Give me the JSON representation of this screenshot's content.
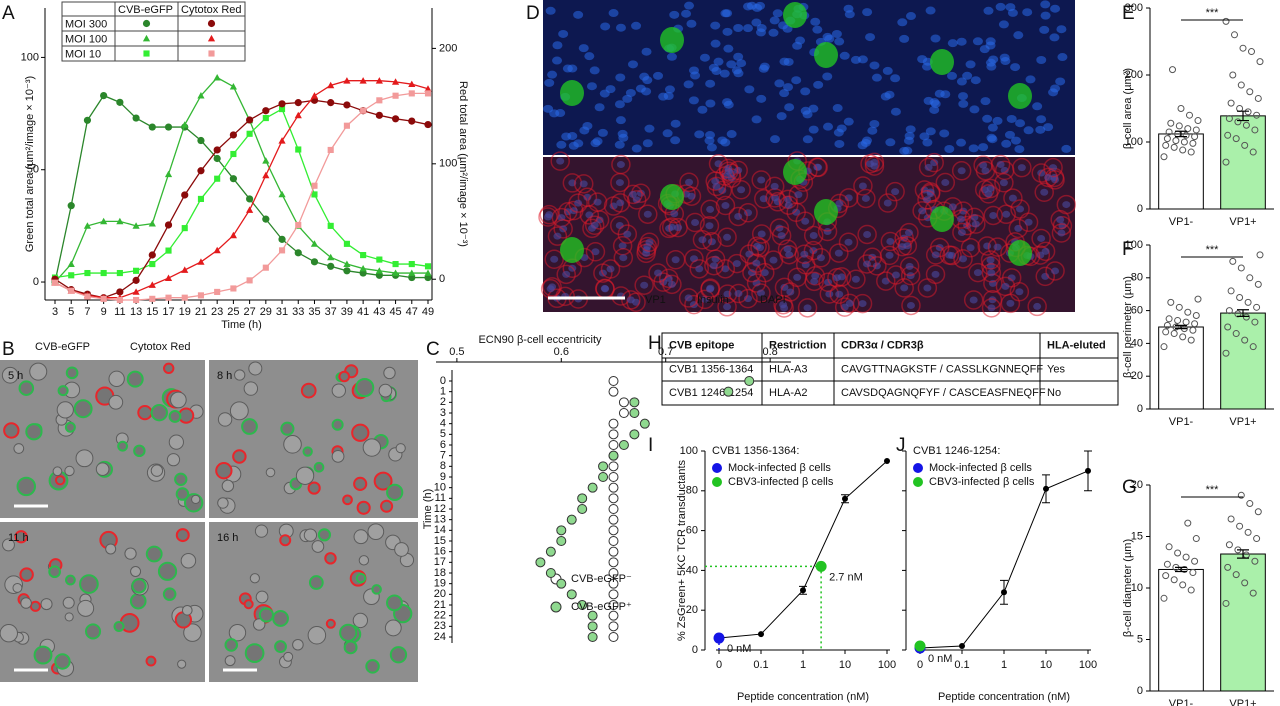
{
  "panel_labels": [
    "A",
    "B",
    "C",
    "D",
    "E",
    "F",
    "G",
    "H",
    "I",
    "J"
  ],
  "chart_data": [
    {
      "type": "line",
      "xlabel": "Time (h)",
      "ylabel": "Green total area (µm²/image × 10⁻³)",
      "y2label": "Red total area (µm²/image × 10⁻³)",
      "x": [
        3,
        5,
        7,
        9,
        11,
        13,
        15,
        17,
        19,
        21,
        23,
        25,
        27,
        29,
        31,
        33,
        35,
        37,
        39,
        41,
        43,
        45,
        47,
        49
      ],
      "xlim": [
        3,
        49
      ],
      "xticks": [
        3,
        5,
        7,
        9,
        11,
        13,
        15,
        17,
        19,
        21,
        23,
        25,
        27,
        29,
        31,
        33,
        35,
        37,
        39,
        41,
        43,
        45,
        47,
        49
      ],
      "ylim": [
        -8,
        122
      ],
      "yticks": [
        0,
        50,
        100
      ],
      "y2lim": [
        -18,
        235
      ],
      "y2ticks": [
        0,
        100,
        200
      ],
      "legend_columns": [
        "CVB-eGFP",
        "Cytotox Red"
      ],
      "series": [
        {
          "name": "MOI 300",
          "color": "#2b862b",
          "marker": "circle",
          "values": [
            0,
            34,
            72,
            83,
            80,
            73,
            69,
            69,
            69,
            63,
            55,
            46,
            37,
            28,
            19,
            13,
            9,
            7,
            5,
            4,
            3,
            3,
            2,
            2
          ]
        },
        {
          "name": "MOI 100",
          "color": "#34b734",
          "marker": "triangle",
          "values": [
            0,
            8,
            25,
            27,
            27,
            25,
            26,
            48,
            70,
            83,
            91,
            87,
            72,
            54,
            39,
            25,
            17,
            11,
            8,
            6,
            5,
            4,
            4,
            4
          ]
        },
        {
          "name": "MOI 10",
          "color": "#33ee33",
          "marker": "square",
          "values": [
            2,
            3,
            4,
            4,
            4,
            5,
            8,
            14,
            24,
            37,
            46,
            57,
            66,
            73,
            77,
            59,
            39,
            25,
            17,
            12,
            10,
            8,
            8,
            7
          ]
        },
        {
          "name": "MOI 300",
          "color": "#8b0a0a",
          "marker": "circle",
          "axis": "y2",
          "values": [
            0,
            -9,
            -13,
            -16,
            -11,
            -1,
            21,
            47,
            73,
            94,
            112,
            125,
            138,
            146,
            152,
            153,
            155,
            153,
            151,
            146,
            142,
            139,
            137,
            134
          ]
        },
        {
          "name": "MOI 100",
          "color": "#e31a1c",
          "marker": "triangle",
          "axis": "y2",
          "values": [
            -3,
            -10,
            -14,
            -16,
            -16,
            -11,
            -5,
            1,
            8,
            15,
            25,
            38,
            60,
            90,
            120,
            142,
            159,
            168,
            172,
            172,
            172,
            171,
            169,
            165
          ]
        },
        {
          "name": "MOI 10",
          "color": "#f29a9a",
          "marker": "square",
          "axis": "y2",
          "values": [
            -3,
            -10,
            -15,
            -17,
            -18,
            -18,
            -17,
            -16,
            -16,
            -14,
            -11,
            -8,
            -1,
            10,
            25,
            47,
            81,
            112,
            133,
            146,
            155,
            159,
            161,
            161
          ]
        }
      ]
    },
    {
      "type": "dot",
      "title": "ECN90 β-cell eccentricity",
      "ylabel": "Time (h)",
      "categories": [
        0,
        1,
        2,
        3,
        4,
        5,
        6,
        7,
        8,
        9,
        10,
        11,
        12,
        13,
        14,
        15,
        16,
        17,
        18,
        19,
        20,
        21,
        22,
        23,
        24
      ],
      "xlim": [
        0.48,
        0.82
      ],
      "xticks": [
        0.5,
        0.6,
        0.7,
        0.8
      ],
      "series": [
        {
          "name": "CVB-eGFP⁻",
          "color": "#ffffff",
          "values": [
            0.65,
            0.65,
            0.66,
            0.66,
            0.65,
            0.65,
            0.65,
            0.65,
            0.65,
            0.65,
            0.65,
            0.65,
            0.65,
            0.65,
            0.65,
            0.65,
            0.65,
            0.65,
            0.65,
            0.65,
            0.65,
            0.65,
            0.65,
            0.65,
            0.65
          ]
        },
        {
          "name": "CVB-eGFP⁺",
          "color": "#8fd98f",
          "values": [
            0.78,
            0.76,
            0.67,
            0.67,
            0.68,
            0.67,
            0.66,
            0.65,
            0.64,
            0.64,
            0.63,
            0.62,
            0.62,
            0.61,
            0.6,
            0.6,
            0.59,
            0.58,
            0.59,
            0.6,
            0.61,
            0.62,
            0.63,
            0.63,
            0.63
          ]
        }
      ]
    },
    {
      "type": "bar",
      "ylabel": "β-cell area (µm²)",
      "categories": [
        "VP1-",
        "VP1+"
      ],
      "values": [
        112,
        139
      ],
      "errors": [
        4,
        7
      ],
      "colors": [
        "#ffffff",
        "#aaf0aa"
      ],
      "ylim": [
        0,
        300
      ],
      "yticks": [
        0,
        100,
        200,
        300
      ],
      "significance": "***",
      "points": [
        [
          78,
          85,
          88,
          92,
          95,
          98,
          100,
          102,
          105,
          108,
          110,
          112,
          115,
          118,
          120,
          124,
          128,
          132,
          140,
          150,
          208
        ],
        [
          70,
          85,
          95,
          105,
          110,
          118,
          125,
          130,
          135,
          140,
          145,
          150,
          158,
          165,
          175,
          185,
          200,
          220,
          235,
          240,
          260,
          280
        ]
      ]
    },
    {
      "type": "bar",
      "ylabel": "β-cell perimeter (µm)",
      "categories": [
        "VP1-",
        "VP1+"
      ],
      "values": [
        50,
        58.5
      ],
      "errors": [
        1,
        2
      ],
      "colors": [
        "#ffffff",
        "#aaf0aa"
      ],
      "ylim": [
        0,
        100
      ],
      "yticks": [
        0,
        20,
        40,
        60,
        80,
        100
      ],
      "significance": "***",
      "points": [
        [
          38,
          42,
          44,
          46,
          47,
          48,
          49,
          50,
          51,
          52,
          53,
          54,
          55,
          57,
          59,
          62,
          65,
          67
        ],
        [
          34,
          38,
          42,
          46,
          50,
          53,
          56,
          58,
          60,
          62,
          65,
          68,
          72,
          76,
          80,
          86,
          90,
          94
        ]
      ]
    },
    {
      "type": "bar",
      "ylabel": "β-cell diameter (µm)",
      "categories": [
        "VP1-",
        "VP1+"
      ],
      "values": [
        11.8,
        13.3
      ],
      "errors": [
        0.2,
        0.4
      ],
      "colors": [
        "#ffffff",
        "#aaf0aa"
      ],
      "ylim": [
        0,
        20
      ],
      "yticks": [
        0,
        5,
        10,
        15,
        20
      ],
      "significance": "***",
      "points": [
        [
          9,
          9.8,
          10.3,
          10.8,
          11.2,
          11.5,
          11.8,
          12,
          12.3,
          12.6,
          13,
          13.4,
          14,
          14.8,
          16.3
        ],
        [
          8.5,
          9.5,
          10.5,
          11.3,
          12,
          12.6,
          13.2,
          13.7,
          14.2,
          14.8,
          15.4,
          16,
          16.7,
          17.4,
          18.2,
          19
        ]
      ]
    },
    {
      "type": "dose",
      "title": "CVB1 1356-1364:",
      "ylabel": "% ZsGreen+ 5KC TCR transductants",
      "xlabel": "Peptide concentration (nM)",
      "x": [
        0,
        0.1,
        1,
        10,
        100
      ],
      "xlim": [
        0,
        100
      ],
      "xticks": [
        0,
        0.1,
        1,
        10,
        100
      ],
      "xscale": "log",
      "values": [
        6,
        8,
        30,
        76,
        95
      ],
      "errors": [
        0,
        0,
        2,
        2,
        0
      ],
      "color": "#000000",
      "ylim": [
        0,
        100
      ],
      "yticks": [
        0,
        20,
        40,
        60,
        80,
        100
      ],
      "markers": [
        {
          "name": "Mock-infected β cells",
          "color": "#1414e6",
          "x": 0,
          "y": 6,
          "label": "0 nM"
        },
        {
          "name": "CBV3-infected β cells",
          "color": "#22c322",
          "x": 2.7,
          "y": 42,
          "label": "2.7 nM"
        }
      ]
    },
    {
      "type": "dose",
      "title": "CVB1 1246-1254:",
      "xlabel": "Peptide concentration (nM)",
      "x": [
        0,
        0.1,
        1,
        10,
        100
      ],
      "xlim": [
        0,
        100
      ],
      "xticks": [
        0,
        0.1,
        1,
        10,
        100
      ],
      "xscale": "log",
      "values": [
        1,
        2,
        29,
        81,
        90
      ],
      "errors": [
        0,
        0,
        6,
        7,
        10
      ],
      "color": "#000000",
      "ylim": [
        0,
        100
      ],
      "yticks": [
        0,
        20,
        40,
        60,
        80,
        100
      ],
      "ytick_labels": false,
      "markers": [
        {
          "name": "Mock-infected β cells",
          "color": "#1414e6",
          "x": 0,
          "y": 1,
          "label": "0 nM"
        },
        {
          "name": "CBV3-infected β cells",
          "color": "#22c322",
          "x": 0,
          "y": 2
        }
      ]
    }
  ],
  "micrographs": {
    "B": {
      "channels": [
        {
          "name": "CVB-eGFP",
          "color": "#2db84d"
        },
        {
          "name": "Cytotox Red",
          "color": "#e8262b"
        }
      ],
      "frames": [
        "5 h",
        "8 h",
        "11 h",
        "16 h"
      ]
    },
    "D": {
      "channels": [
        {
          "name": "VP1",
          "color": "#22cc22"
        },
        {
          "name": "Insulin",
          "color": "#e0192a"
        },
        {
          "name": "DAPI",
          "color": "#2a6ae8"
        }
      ]
    }
  },
  "table": {
    "header": [
      "CVB epitope",
      "Restriction",
      "CDR3α / CDR3β",
      "HLA-eluted"
    ],
    "rows": [
      [
        "CVB1 1356-1364",
        "HLA-A3",
        "CAVGTTNAGKSTF / CASSLKGNNEQFF",
        "Yes"
      ],
      [
        "CVB1 1246-1254",
        "HLA-A2",
        "CAVSDQAGNQFYF / CASCEASFNEQFF",
        "No"
      ]
    ]
  }
}
